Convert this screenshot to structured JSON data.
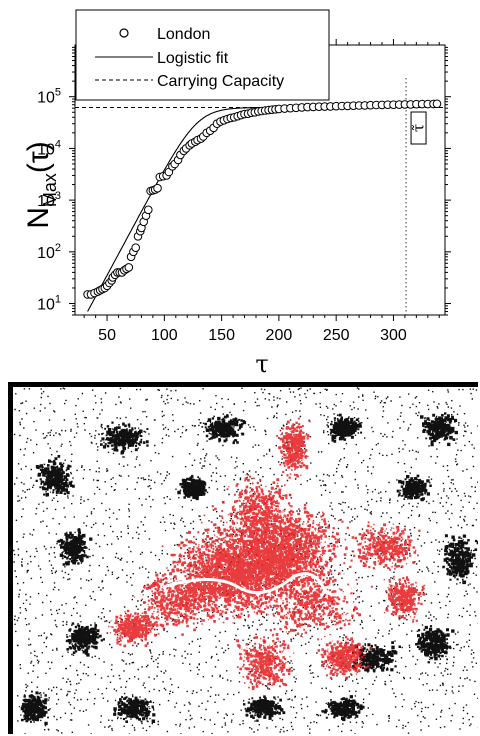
{
  "chart_data": {
    "type": "scatter",
    "xlabel": "τ",
    "ylabel_main": "N",
    "ylabel_sub": "Max",
    "ylabel_arg": "(τ)",
    "yscale": "log",
    "xlim": [
      22,
      345
    ],
    "ylim": [
      6,
      1000000
    ],
    "xticks": [
      50,
      100,
      150,
      200,
      250,
      300
    ],
    "yticks": [
      {
        "value": 10,
        "base": "10",
        "exp": "1"
      },
      {
        "value": 100,
        "base": "10",
        "exp": "2"
      },
      {
        "value": 1000,
        "base": "10",
        "exp": "3"
      },
      {
        "value": 10000,
        "base": "10",
        "exp": "4"
      },
      {
        "value": 100000,
        "base": "10",
        "exp": "5"
      }
    ],
    "legend": {
      "position": "top-left",
      "entries": [
        {
          "label": "London",
          "style": "circle"
        },
        {
          "label": "Logistic fit",
          "style": "solid"
        },
        {
          "label": "Carrying Capacity",
          "style": "dashed"
        }
      ]
    },
    "series": [
      {
        "name": "London",
        "style": "circle",
        "x": [
          33,
          36,
          39,
          42,
          44,
          46,
          48,
          50,
          52,
          54,
          55,
          57,
          59,
          61,
          63,
          65,
          67,
          69,
          71,
          73,
          75,
          77,
          79,
          80,
          82,
          84,
          86,
          88,
          90,
          92,
          94,
          96,
          99,
          102,
          104,
          107,
          109,
          112,
          114,
          117,
          119,
          122,
          124,
          127,
          129,
          132,
          134,
          137,
          140,
          143,
          146,
          149,
          152,
          155,
          158,
          161,
          164,
          167,
          170,
          173,
          176,
          179,
          182,
          185,
          188,
          191,
          194,
          197,
          200,
          205,
          210,
          215,
          220,
          225,
          230,
          235,
          240,
          245,
          250,
          255,
          260,
          265,
          270,
          275,
          280,
          285,
          290,
          295,
          300,
          305,
          310,
          315,
          320,
          325,
          330,
          335,
          338
        ],
        "y": [
          15,
          15,
          16,
          17,
          18,
          19,
          20,
          22,
          25,
          28,
          32,
          36,
          40,
          40,
          40,
          44,
          47,
          50,
          80,
          100,
          120,
          200,
          250,
          290,
          380,
          500,
          650,
          1500,
          1550,
          1600,
          1700,
          2800,
          2900,
          3000,
          3500,
          4500,
          5000,
          6000,
          7500,
          9000,
          10000,
          11500,
          12500,
          13500,
          14500,
          15500,
          17000,
          20000,
          22000,
          25000,
          30000,
          33000,
          35000,
          37000,
          39000,
          40000,
          42000,
          44000,
          46000,
          47000,
          49000,
          50000,
          52000,
          53000,
          54000,
          55000,
          56000,
          57000,
          58000,
          59000,
          60000,
          61000,
          62000,
          63000,
          63500,
          64000,
          64500,
          65000,
          65500,
          66000,
          66500,
          67000,
          67500,
          68000,
          68500,
          69000,
          69500,
          70000,
          70000,
          70500,
          71000,
          71000,
          71500,
          72000,
          72000,
          72500,
          73000
        ]
      }
    ],
    "logistic_fit": {
      "K": 62000,
      "N0": 7,
      "r": 0.095,
      "x_start": 33,
      "x_end": 200
    },
    "carrying_capacity": 62000,
    "tau_marker": {
      "x": 311,
      "label": "τ̃"
    }
  },
  "map": {
    "caption_visible": false,
    "colors": {
      "urban_core": "#e41a1c",
      "surrounding": "#111111",
      "background": "#ffffff",
      "frame": "#000000"
    }
  }
}
